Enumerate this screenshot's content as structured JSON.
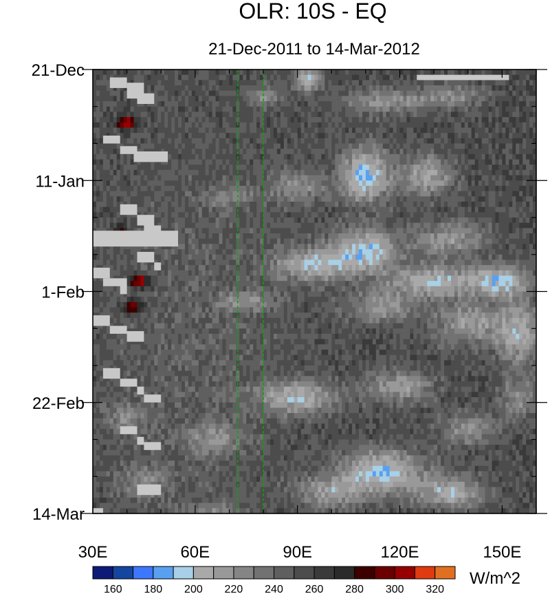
{
  "chart_data": {
    "type": "heatmap",
    "title": "OLR: 10S - EQ",
    "subtitle": "21-Dec-2011 to 14-Mar-2012",
    "xlabel": "",
    "ylabel": "",
    "x_range": [
      30,
      160
    ],
    "x_ticks": [
      {
        "value": 30,
        "label": "30E"
      },
      {
        "value": 60,
        "label": "60E"
      },
      {
        "value": 90,
        "label": "90E"
      },
      {
        "value": 120,
        "label": "120E"
      },
      {
        "value": 150,
        "label": "150E"
      }
    ],
    "y_range_days": [
      0,
      84
    ],
    "y_ticks": [
      {
        "day": 0,
        "label": "21-Dec"
      },
      {
        "day": 21,
        "label": "11-Jan"
      },
      {
        "day": 42,
        "label": "1-Feb"
      },
      {
        "day": 63,
        "label": "22-Feb"
      },
      {
        "day": 84,
        "label": "14-Mar"
      }
    ],
    "reference_lines_lon": [
      72.5,
      80
    ],
    "missing_color": "#c8c8c8",
    "colorbar": {
      "units": "W/m^2",
      "levels": [
        160,
        170,
        180,
        190,
        200,
        210,
        220,
        230,
        240,
        250,
        260,
        270,
        280,
        290,
        300,
        310,
        320,
        330
      ],
      "labels": [
        "160",
        "180",
        "200",
        "220",
        "240",
        "260",
        "280",
        "300",
        "320"
      ],
      "colors": [
        "#0d1a78",
        "#1446a0",
        "#3c78ff",
        "#5aa0f0",
        "#a8d0e6",
        "#a9a9a9",
        "#999999",
        "#858585",
        "#727272",
        "#5f5f5f",
        "#4c4c4c",
        "#3a3a3a",
        "#2b2b2b",
        "#3c0000",
        "#6a0000",
        "#960000",
        "#e03a10",
        "#e07020"
      ]
    }
  }
}
